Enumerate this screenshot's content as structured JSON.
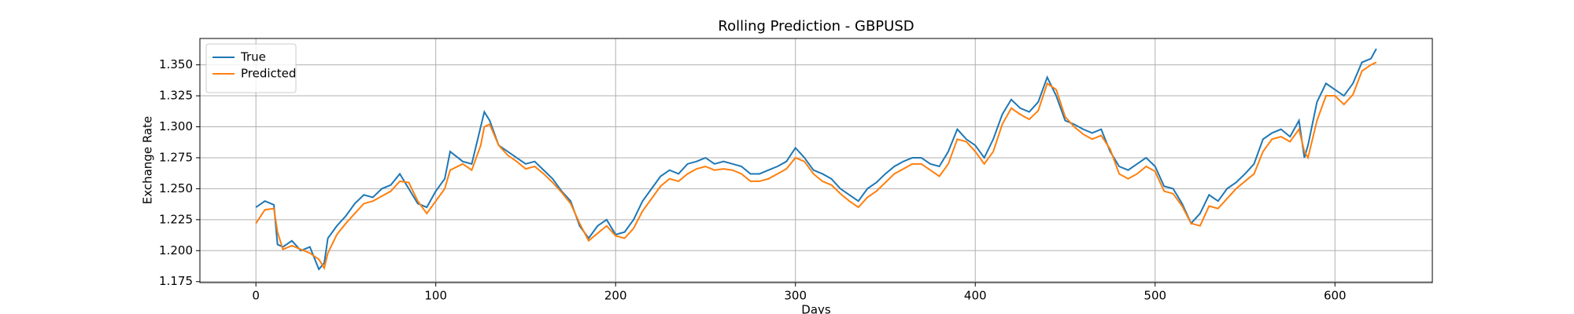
{
  "chart_data": {
    "type": "line",
    "title": "Rolling Prediction - GBPUSD",
    "xlabel": "Days",
    "ylabel": "Exchange Rate",
    "x": [
      0,
      5,
      10,
      12,
      15,
      20,
      25,
      30,
      35,
      38,
      40,
      45,
      50,
      55,
      60,
      65,
      70,
      75,
      80,
      85,
      90,
      95,
      100,
      105,
      108,
      115,
      120,
      125,
      127,
      130,
      135,
      140,
      145,
      150,
      155,
      160,
      165,
      170,
      175,
      180,
      185,
      190,
      195,
      200,
      205,
      210,
      215,
      220,
      225,
      230,
      235,
      240,
      245,
      250,
      255,
      260,
      265,
      270,
      275,
      280,
      285,
      290,
      295,
      300,
      305,
      310,
      315,
      320,
      325,
      330,
      335,
      340,
      345,
      350,
      355,
      360,
      365,
      370,
      375,
      380,
      385,
      390,
      395,
      400,
      405,
      410,
      415,
      420,
      425,
      430,
      435,
      440,
      445,
      450,
      455,
      460,
      465,
      470,
      475,
      480,
      485,
      490,
      495,
      500,
      505,
      510,
      515,
      520,
      525,
      530,
      535,
      540,
      545,
      550,
      555,
      560,
      565,
      570,
      575,
      580,
      583,
      585,
      590,
      595,
      600,
      605,
      610,
      615,
      620,
      623
    ],
    "series": [
      {
        "name": "True",
        "color": "#1f77b4",
        "values": [
          1.235,
          1.24,
          1.237,
          1.205,
          1.203,
          1.208,
          1.2,
          1.203,
          1.185,
          1.19,
          1.21,
          1.22,
          1.228,
          1.238,
          1.245,
          1.243,
          1.25,
          1.253,
          1.262,
          1.25,
          1.238,
          1.235,
          1.248,
          1.258,
          1.28,
          1.272,
          1.27,
          1.3,
          1.312,
          1.305,
          1.285,
          1.28,
          1.275,
          1.27,
          1.272,
          1.265,
          1.258,
          1.248,
          1.24,
          1.22,
          1.21,
          1.22,
          1.225,
          1.213,
          1.215,
          1.225,
          1.24,
          1.25,
          1.26,
          1.265,
          1.262,
          1.27,
          1.272,
          1.275,
          1.27,
          1.272,
          1.27,
          1.268,
          1.262,
          1.262,
          1.265,
          1.268,
          1.272,
          1.283,
          1.275,
          1.265,
          1.262,
          1.258,
          1.25,
          1.245,
          1.24,
          1.25,
          1.255,
          1.262,
          1.268,
          1.272,
          1.275,
          1.275,
          1.27,
          1.268,
          1.28,
          1.298,
          1.29,
          1.285,
          1.275,
          1.29,
          1.31,
          1.322,
          1.315,
          1.312,
          1.32,
          1.34,
          1.325,
          1.305,
          1.302,
          1.298,
          1.295,
          1.298,
          1.28,
          1.268,
          1.265,
          1.27,
          1.275,
          1.268,
          1.252,
          1.25,
          1.238,
          1.222,
          1.23,
          1.245,
          1.24,
          1.25,
          1.255,
          1.262,
          1.27,
          1.29,
          1.295,
          1.298,
          1.292,
          1.305,
          1.275,
          1.285,
          1.32,
          1.335,
          1.33,
          1.325,
          1.335,
          1.352,
          1.355,
          1.363
        ]
      },
      {
        "name": "Predicted",
        "color": "#ff7f0e",
        "values": [
          1.222,
          1.233,
          1.234,
          1.215,
          1.201,
          1.204,
          1.201,
          1.198,
          1.193,
          1.186,
          1.198,
          1.213,
          1.222,
          1.23,
          1.238,
          1.24,
          1.244,
          1.248,
          1.256,
          1.255,
          1.24,
          1.23,
          1.24,
          1.25,
          1.265,
          1.27,
          1.265,
          1.285,
          1.3,
          1.302,
          1.285,
          1.277,
          1.272,
          1.266,
          1.268,
          1.262,
          1.255,
          1.247,
          1.238,
          1.222,
          1.208,
          1.214,
          1.22,
          1.212,
          1.21,
          1.218,
          1.232,
          1.242,
          1.252,
          1.258,
          1.256,
          1.262,
          1.266,
          1.268,
          1.265,
          1.266,
          1.265,
          1.262,
          1.256,
          1.256,
          1.258,
          1.262,
          1.266,
          1.275,
          1.272,
          1.262,
          1.256,
          1.253,
          1.246,
          1.24,
          1.235,
          1.243,
          1.248,
          1.255,
          1.262,
          1.266,
          1.27,
          1.27,
          1.265,
          1.26,
          1.27,
          1.29,
          1.288,
          1.28,
          1.27,
          1.28,
          1.302,
          1.315,
          1.31,
          1.306,
          1.313,
          1.335,
          1.33,
          1.308,
          1.3,
          1.294,
          1.29,
          1.293,
          1.282,
          1.262,
          1.258,
          1.262,
          1.268,
          1.264,
          1.248,
          1.246,
          1.236,
          1.222,
          1.22,
          1.236,
          1.234,
          1.242,
          1.25,
          1.256,
          1.262,
          1.28,
          1.29,
          1.292,
          1.288,
          1.298,
          1.28,
          1.275,
          1.305,
          1.325,
          1.325,
          1.318,
          1.326,
          1.345,
          1.35,
          1.352
        ]
      }
    ],
    "xlim": [
      -31.15,
      654.15
    ],
    "xticks": [
      0,
      100,
      200,
      300,
      400,
      500,
      600
    ],
    "ylim": [
      1.1742,
      1.3713
    ],
    "yticks": [
      1.175,
      {
        "value": 1.2,
        "label": "1.200"
      },
      1.225,
      {
        "value": 1.25,
        "label": "1.250"
      },
      1.275,
      {
        "value": 1.3,
        "label": "1.300"
      },
      1.325,
      {
        "value": 1.35,
        "label": "1.350"
      }
    ],
    "grid": true,
    "legend": "upper left"
  }
}
